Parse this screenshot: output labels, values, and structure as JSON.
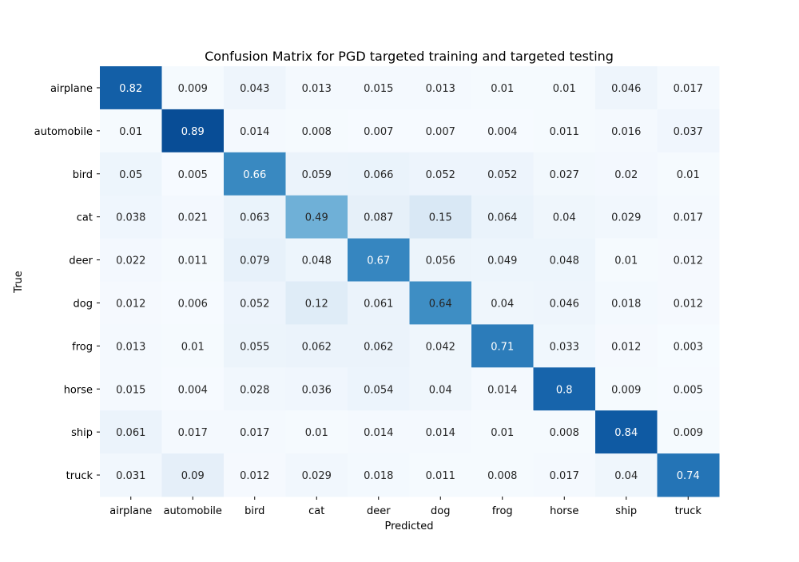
{
  "chart_data": {
    "type": "heatmap",
    "title": "Confusion Matrix for PGD targeted training and targeted testing",
    "xlabel": "Predicted",
    "ylabel": "True",
    "x_categories": [
      "airplane",
      "automobile",
      "bird",
      "cat",
      "deer",
      "dog",
      "frog",
      "horse",
      "ship",
      "truck"
    ],
    "y_categories": [
      "airplane",
      "automobile",
      "bird",
      "cat",
      "deer",
      "dog",
      "frog",
      "horse",
      "ship",
      "truck"
    ],
    "colormap": "Blues",
    "color_range": [
      0,
      1
    ],
    "colorbar": false,
    "grid": false,
    "values": [
      [
        0.82,
        0.009,
        0.043,
        0.013,
        0.015,
        0.013,
        0.01,
        0.01,
        0.046,
        0.017
      ],
      [
        0.01,
        0.89,
        0.014,
        0.008,
        0.007,
        0.007,
        0.004,
        0.011,
        0.016,
        0.037
      ],
      [
        0.05,
        0.005,
        0.66,
        0.059,
        0.066,
        0.052,
        0.052,
        0.027,
        0.02,
        0.01
      ],
      [
        0.038,
        0.021,
        0.063,
        0.49,
        0.087,
        0.15,
        0.064,
        0.04,
        0.029,
        0.017
      ],
      [
        0.022,
        0.011,
        0.079,
        0.048,
        0.67,
        0.056,
        0.049,
        0.048,
        0.01,
        0.012
      ],
      [
        0.012,
        0.006,
        0.052,
        0.12,
        0.061,
        0.64,
        0.04,
        0.046,
        0.018,
        0.012
      ],
      [
        0.013,
        0.01,
        0.055,
        0.062,
        0.062,
        0.042,
        0.71,
        0.033,
        0.012,
        0.003
      ],
      [
        0.015,
        0.004,
        0.028,
        0.036,
        0.054,
        0.04,
        0.014,
        0.8,
        0.009,
        0.005
      ],
      [
        0.061,
        0.017,
        0.017,
        0.01,
        0.014,
        0.014,
        0.01,
        0.008,
        0.84,
        0.009
      ],
      [
        0.031,
        0.09,
        0.012,
        0.029,
        0.018,
        0.011,
        0.008,
        0.017,
        0.04,
        0.74
      ]
    ],
    "cell_labels": [
      [
        "0.82",
        "0.009",
        "0.043",
        "0.013",
        "0.015",
        "0.013",
        "0.01",
        "0.01",
        "0.046",
        "0.017"
      ],
      [
        "0.01",
        "0.89",
        "0.014",
        "0.008",
        "0.007",
        "0.007",
        "0.004",
        "0.011",
        "0.016",
        "0.037"
      ],
      [
        "0.05",
        "0.005",
        "0.66",
        "0.059",
        "0.066",
        "0.052",
        "0.052",
        "0.027",
        "0.02",
        "0.01"
      ],
      [
        "0.038",
        "0.021",
        "0.063",
        "0.49",
        "0.087",
        "0.15",
        "0.064",
        "0.04",
        "0.029",
        "0.017"
      ],
      [
        "0.022",
        "0.011",
        "0.079",
        "0.048",
        "0.67",
        "0.056",
        "0.049",
        "0.048",
        "0.01",
        "0.012"
      ],
      [
        "0.012",
        "0.006",
        "0.052",
        "0.12",
        "0.061",
        "0.64",
        "0.04",
        "0.046",
        "0.018",
        "0.012"
      ],
      [
        "0.013",
        "0.01",
        "0.055",
        "0.062",
        "0.062",
        "0.042",
        "0.71",
        "0.033",
        "0.012",
        "0.003"
      ],
      [
        "0.015",
        "0.004",
        "0.028",
        "0.036",
        "0.054",
        "0.04",
        "0.014",
        "0.8",
        "0.009",
        "0.005"
      ],
      [
        "0.061",
        "0.017",
        "0.017",
        "0.01",
        "0.014",
        "0.014",
        "0.01",
        "0.008",
        "0.84",
        "0.009"
      ],
      [
        "0.031",
        "0.09",
        "0.012",
        "0.029",
        "0.018",
        "0.011",
        "0.008",
        "0.017",
        "0.04",
        "0.74"
      ]
    ]
  }
}
